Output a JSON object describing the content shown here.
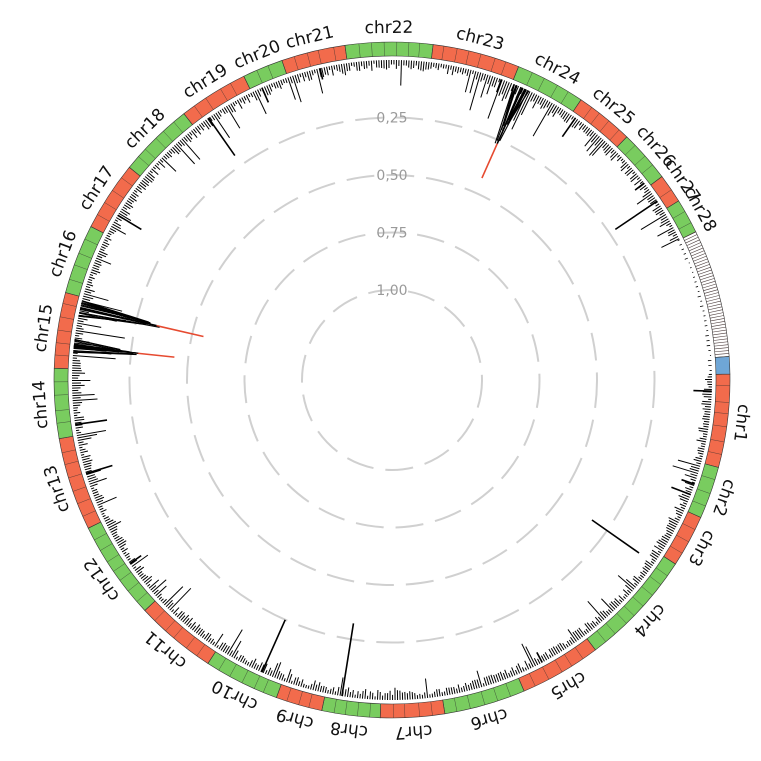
{
  "chart_data": {
    "type": "circular-manhattan",
    "title": "",
    "colors": {
      "odd": "#f26b4c",
      "even": "#79cc5f",
      "unplaced": "#6fa6d6",
      "peak": "#000000",
      "highlight": "#e64a30",
      "grid": "#d0d0d0"
    },
    "scale_labels": [
      "0,25",
      "0,50",
      "0,75",
      "1,00"
    ],
    "scale_values": [
      0.25,
      0.5,
      0.75,
      1.0
    ],
    "chromosomes": [
      {
        "label": "chr1",
        "start": 89,
        "end": 105,
        "color": "odd"
      },
      {
        "label": "chr2",
        "start": 105,
        "end": 114,
        "color": "even"
      },
      {
        "label": "chr3",
        "start": 114,
        "end": 123,
        "color": "odd"
      },
      {
        "label": "chr4",
        "start": 123,
        "end": 143,
        "color": "even"
      },
      {
        "label": "chr5",
        "start": 143,
        "end": 157,
        "color": "odd"
      },
      {
        "label": "chr6",
        "start": 157,
        "end": 171,
        "color": "even"
      },
      {
        "label": "chr7",
        "start": 171,
        "end": 182,
        "color": "odd"
      },
      {
        "label": "chr8",
        "start": 182,
        "end": 192,
        "color": "even"
      },
      {
        "label": "chr9",
        "start": 192,
        "end": 200,
        "color": "odd"
      },
      {
        "label": "chr10",
        "start": 200,
        "end": 213,
        "color": "even"
      },
      {
        "label": "chr11",
        "start": 213,
        "end": 227,
        "color": "odd"
      },
      {
        "label": "chr12",
        "start": 227,
        "end": 244,
        "color": "even"
      },
      {
        "label": "chr13",
        "start": 244,
        "end": 260,
        "color": "odd"
      },
      {
        "label": "chr14",
        "start": 260,
        "end": 272,
        "color": "even"
      },
      {
        "label": "chr15",
        "start": 272,
        "end": 285,
        "color": "odd"
      },
      {
        "label": "chr16",
        "start": 285,
        "end": 297,
        "color": "even"
      },
      {
        "label": "chr17",
        "start": 297,
        "end": 309,
        "color": "odd"
      },
      {
        "label": "chr18",
        "start": 309,
        "end": 322,
        "color": "even"
      },
      {
        "label": "chr19",
        "start": 322,
        "end": 334,
        "color": "odd"
      },
      {
        "label": "chr20",
        "start": 334,
        "end": 341,
        "color": "even"
      },
      {
        "label": "chr21",
        "start": 341,
        "end": 352,
        "color": "odd"
      },
      {
        "label": "chr22",
        "start": 352,
        "end": 367,
        "color": "even"
      },
      {
        "label": "chr23",
        "start": 367,
        "end": 382,
        "color": "odd"
      },
      {
        "label": "chr24",
        "start": 382,
        "end": 394,
        "color": "even"
      },
      {
        "label": "chr25",
        "start": 394,
        "end": 404,
        "color": "odd"
      },
      {
        "label": "chr26",
        "start": 404,
        "end": 413,
        "color": "even"
      },
      {
        "label": "chr27",
        "start": 413,
        "end": 418,
        "color": "odd"
      },
      {
        "label": "chr28",
        "start": 418,
        "end": 424,
        "color": "even"
      }
    ],
    "unplaced_region": [
      424,
      446
    ],
    "unplaced_highlight": [
      446,
      449
    ],
    "peaks": [
      {
        "angle": 92,
        "value": 0.08
      },
      {
        "angle": 109,
        "value": 0.06
      },
      {
        "angle": 111,
        "value": 0.09
      },
      {
        "angle": 125,
        "value": 0.33,
        "offset": 0.08
      },
      {
        "angle": 152,
        "value": 0.05
      },
      {
        "angle": 189,
        "value": 0.32
      },
      {
        "angle": 204,
        "value": 0.25
      },
      {
        "angle": 235,
        "value": 0.06
      },
      {
        "angle": 253,
        "value": 0.12
      },
      {
        "angle": 262,
        "value": 0.14
      },
      {
        "angle": 276,
        "value": 0.44,
        "highlight": true
      },
      {
        "angle": 283,
        "value": 0.55,
        "highlight": true
      },
      {
        "angle": 301,
        "value": 0.12
      },
      {
        "angle": 325,
        "value": 0.2
      },
      {
        "angle": 336,
        "value": 0.07
      },
      {
        "angle": 347,
        "value": 0.05
      },
      {
        "angle": 380,
        "value": 0.06
      },
      {
        "angle": 384,
        "value": 0.43,
        "highlight": true
      },
      {
        "angle": 395,
        "value": 0.1
      },
      {
        "angle": 412,
        "value": 0.05
      },
      {
        "angle": 416,
        "value": 0.22
      }
    ]
  }
}
